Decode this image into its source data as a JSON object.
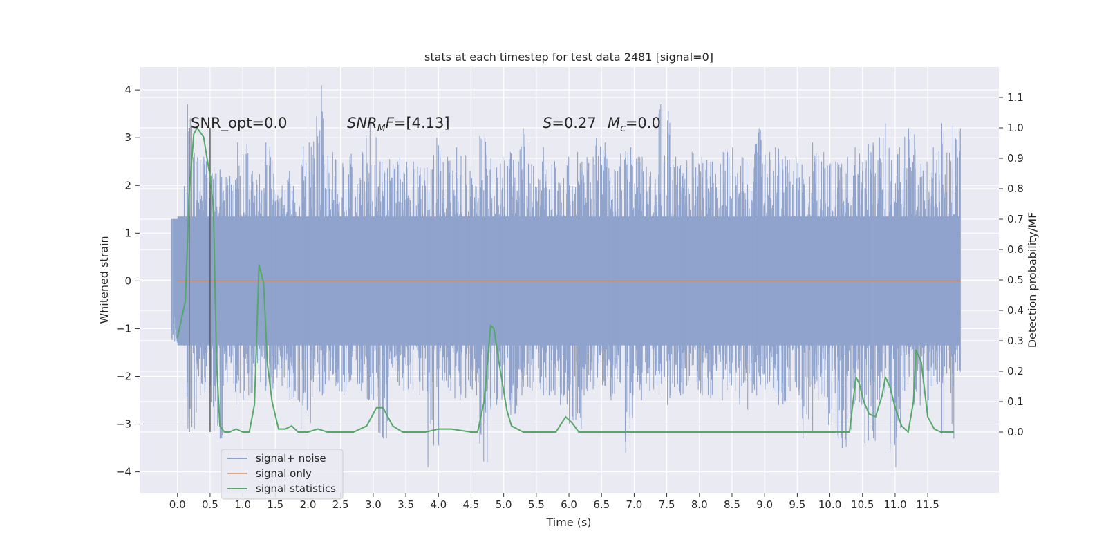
{
  "chart_data": {
    "type": "line",
    "title": "stats at each timestep for test data 2481 [signal=0]",
    "xlabel": "Time (s)",
    "ylabel_left": "Whitened strain",
    "ylabel_right": "Detection probability/MF",
    "xlim": [
      -0.58,
      12.59
    ],
    "ylim_left": [
      -4.44,
      4.48
    ],
    "ylim_right": [
      -0.2,
      1.2
    ],
    "x_ticks": [
      0.0,
      0.5,
      1.0,
      1.5,
      2.0,
      2.5,
      3.0,
      3.5,
      4.0,
      4.5,
      5.0,
      5.5,
      6.0,
      6.5,
      7.0,
      7.5,
      8.0,
      8.5,
      9.0,
      9.5,
      10.0,
      10.5,
      11.0,
      11.5
    ],
    "x_tick_labels": [
      "0.0",
      "0.5",
      "1.0",
      "1.5",
      "2.0",
      "2.5",
      "3.0",
      "3.5",
      "4.0",
      "4.5",
      "5.0",
      "5.5",
      "6.0",
      "6.5",
      "7.0",
      "7.5",
      "8.0",
      "8.5",
      "9.0",
      "9.5",
      "10.0",
      "10.5",
      "11.0",
      "11.5"
    ],
    "y_left_ticks": [
      4,
      3,
      2,
      1,
      0,
      -1,
      -2,
      -3,
      -4
    ],
    "y_left_tick_labels": [
      "4",
      "3",
      "2",
      "1",
      "0",
      "−1",
      "−2",
      "−3",
      "−4"
    ],
    "y_right_ticks": [
      1.1,
      1.0,
      0.9,
      0.8,
      0.7,
      0.6,
      0.5,
      0.4,
      0.3,
      0.2,
      0.1,
      0.0
    ],
    "y_right_tick_labels": [
      "1.1",
      "1.0",
      "0.9",
      "0.8",
      "0.7",
      "0.6",
      "0.5",
      "0.4",
      "0.3",
      "0.2",
      "0.1",
      "0.0"
    ],
    "grid": true,
    "legend_position": "lower-left",
    "annotations": {
      "snr_opt": "SNR_opt=0.0",
      "snr_mf_main": "SNR",
      "snr_mf_sub": "M",
      "snr_mf_rest": "F=[4.13]",
      "s_main": "S",
      "s_rest": "=0.27",
      "mc_main": "M",
      "mc_sub": "c",
      "mc_rest": "=0.0"
    },
    "vertical_markers_x": [
      0.18,
      0.5
    ],
    "series": [
      {
        "name": "signal+ noise",
        "axis": "left",
        "color": "#8fa3cc",
        "time_range": [
          0.0,
          12.0
        ],
        "envelope_upper": [
          1.3,
          3.7,
          2.6,
          2.4,
          2.2,
          2.9,
          2.3,
          2.9,
          2.0,
          2.3,
          2.9,
          4.1,
          2.7,
          2.6,
          2.7,
          3.3,
          2.5,
          2.6,
          2.5,
          2.4,
          3.0,
          2.6,
          2.8,
          2.3,
          3.1,
          2.6,
          2.7,
          3.2,
          2.5,
          2.8,
          2.6,
          2.7,
          2.6,
          3.0,
          2.4,
          2.8,
          2.6,
          2.4,
          3.7,
          2.6,
          2.7,
          2.6,
          2.5,
          2.8,
          2.6,
          3.2,
          2.7,
          2.8,
          2.6,
          2.9,
          2.7,
          2.5,
          2.6,
          2.8,
          2.9,
          3.3,
          2.8,
          3.2,
          2.5,
          2.8,
          3.3,
          3.2
        ],
        "envelope_lower": [
          -0.6,
          -3.1,
          -2.4,
          -3.3,
          -2.2,
          -2.6,
          -2.4,
          -2.3,
          -2.2,
          -2.5,
          -3.1,
          -2.4,
          -2.2,
          -2.4,
          -2.3,
          -2.5,
          -3.3,
          -2.2,
          -2.3,
          -2.4,
          -3.9,
          -2.3,
          -2.5,
          -2.4,
          -3.8,
          -2.6,
          -2.8,
          -2.4,
          -2.3,
          -2.4,
          -2.6,
          -3.1,
          -2.4,
          -2.2,
          -2.5,
          -3.6,
          -2.5,
          -2.3,
          -2.6,
          -2.4,
          -2.2,
          -2.4,
          -2.5,
          -2.3,
          -2.7,
          -2.4,
          -2.3,
          -2.6,
          -2.4,
          -3.3,
          -2.5,
          -3.3,
          -3.5,
          -2.6,
          -3.4,
          -2.5,
          -3.9,
          -2.6,
          -2.7,
          -2.5,
          -3.3,
          -1.9
        ]
      },
      {
        "name": "signal only",
        "axis": "left",
        "color": "#dd8452",
        "time_range": [
          0.0,
          12.0
        ],
        "values_constant": 0.0
      },
      {
        "name": "signal statistics",
        "axis": "right",
        "color": "#55a868",
        "x": [
          0.0,
          0.12,
          0.18,
          0.25,
          0.3,
          0.4,
          0.5,
          0.55,
          0.6,
          0.65,
          0.72,
          0.8,
          0.9,
          1.0,
          1.1,
          1.18,
          1.25,
          1.32,
          1.38,
          1.45,
          1.55,
          1.65,
          1.75,
          1.85,
          2.0,
          2.15,
          2.3,
          2.5,
          2.7,
          2.9,
          3.05,
          3.15,
          3.2,
          3.3,
          3.45,
          3.6,
          3.8,
          4.0,
          4.2,
          4.5,
          4.6,
          4.7,
          4.8,
          4.85,
          4.95,
          5.05,
          5.12,
          5.3,
          5.5,
          5.8,
          5.95,
          6.05,
          6.15,
          6.4,
          7.0,
          7.5,
          8.0,
          8.5,
          9.0,
          9.5,
          9.8,
          10.1,
          10.3,
          10.4,
          10.45,
          10.52,
          10.6,
          10.7,
          10.8,
          10.85,
          10.92,
          11.0,
          11.1,
          11.2,
          11.28,
          11.32,
          11.4,
          11.5,
          11.6,
          11.7,
          11.9
        ],
        "y": [
          0.31,
          0.43,
          0.78,
          0.98,
          1.0,
          0.97,
          0.84,
          0.74,
          0.22,
          0.02,
          0.0,
          0.0,
          0.01,
          0.0,
          0.0,
          0.09,
          0.55,
          0.49,
          0.22,
          0.1,
          0.01,
          0.01,
          0.02,
          0.0,
          0.0,
          0.01,
          0.0,
          0.0,
          0.0,
          0.02,
          0.08,
          0.08,
          0.06,
          0.02,
          0.0,
          0.0,
          0.0,
          0.01,
          0.01,
          0.0,
          0.0,
          0.1,
          0.35,
          0.34,
          0.2,
          0.07,
          0.02,
          0.0,
          0.0,
          0.0,
          0.05,
          0.03,
          0.0,
          0.0,
          0.0,
          0.0,
          0.0,
          0.0,
          0.0,
          0.0,
          0.0,
          0.0,
          0.0,
          0.18,
          0.16,
          0.1,
          0.06,
          0.05,
          0.12,
          0.18,
          0.15,
          0.08,
          0.02,
          0.0,
          0.1,
          0.27,
          0.23,
          0.05,
          0.01,
          0.0,
          0.0
        ]
      }
    ]
  }
}
